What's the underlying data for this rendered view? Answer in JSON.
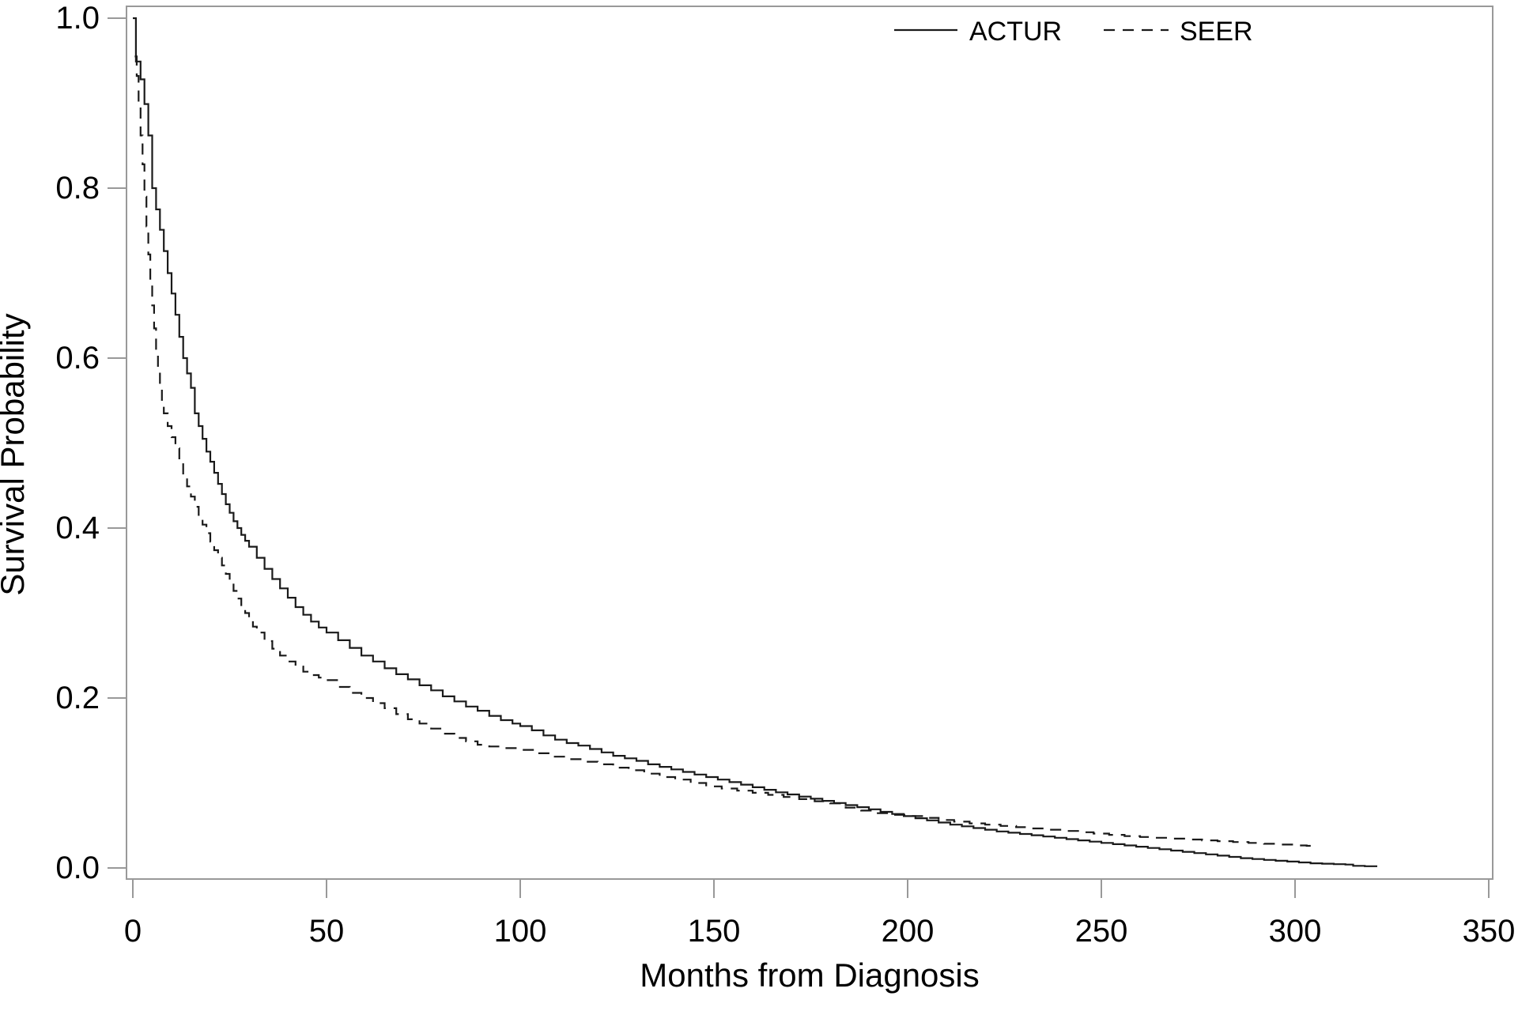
{
  "chart_data": {
    "type": "line",
    "subtype": "kaplan-meier-step",
    "title": "",
    "xlabel": "Months from Diagnosis",
    "ylabel": "Survival Probability",
    "xlim": [
      0,
      350
    ],
    "ylim": [
      0.0,
      1.0
    ],
    "grid": false,
    "legend_position": "top-right-inside",
    "x_ticks": [
      {
        "value": 0,
        "label": "0"
      },
      {
        "value": 50,
        "label": "50"
      },
      {
        "value": 100,
        "label": "100"
      },
      {
        "value": 150,
        "label": "150"
      },
      {
        "value": 200,
        "label": "200"
      },
      {
        "value": 250,
        "label": "250"
      },
      {
        "value": 300,
        "label": "300"
      },
      {
        "value": 350,
        "label": "350"
      }
    ],
    "y_ticks": [
      {
        "value": 0.0,
        "label": "0.0"
      },
      {
        "value": 0.2,
        "label": "0.2"
      },
      {
        "value": 0.4,
        "label": "0.4"
      },
      {
        "value": 0.6,
        "label": "0.6"
      },
      {
        "value": 0.8,
        "label": "0.8"
      },
      {
        "value": 1.0,
        "label": "1.0"
      }
    ],
    "colors": {
      "curve": "#1a1a1a",
      "axis_frame": "#999999",
      "tick": "#999999",
      "text": "#000000",
      "background": "#ffffff"
    },
    "series": [
      {
        "name": "ACTUR",
        "line_style": "solid",
        "points": [
          [
            0,
            1.0
          ],
          [
            0.8,
            0.949
          ],
          [
            2,
            0.928
          ],
          [
            3,
            0.899
          ],
          [
            4,
            0.862
          ],
          [
            5,
            0.8
          ],
          [
            6,
            0.775
          ],
          [
            7,
            0.751
          ],
          [
            8,
            0.726
          ],
          [
            9,
            0.7
          ],
          [
            10,
            0.676
          ],
          [
            11,
            0.651
          ],
          [
            12,
            0.625
          ],
          [
            13,
            0.6
          ],
          [
            14,
            0.582
          ],
          [
            15,
            0.565
          ],
          [
            16,
            0.535
          ],
          [
            17,
            0.52
          ],
          [
            18,
            0.505
          ],
          [
            19,
            0.49
          ],
          [
            20,
            0.478
          ],
          [
            21,
            0.465
          ],
          [
            22,
            0.452
          ],
          [
            23,
            0.44
          ],
          [
            24,
            0.428
          ],
          [
            25,
            0.418
          ],
          [
            26,
            0.408
          ],
          [
            27,
            0.4
          ],
          [
            28,
            0.392
          ],
          [
            29,
            0.385
          ],
          [
            30,
            0.378
          ],
          [
            32,
            0.365
          ],
          [
            34,
            0.352
          ],
          [
            36,
            0.34
          ],
          [
            38,
            0.329
          ],
          [
            40,
            0.318
          ],
          [
            42,
            0.307
          ],
          [
            44,
            0.298
          ],
          [
            46,
            0.29
          ],
          [
            48,
            0.283
          ],
          [
            50,
            0.277
          ],
          [
            53,
            0.268
          ],
          [
            56,
            0.259
          ],
          [
            59,
            0.25
          ],
          [
            62,
            0.243
          ],
          [
            65,
            0.235
          ],
          [
            68,
            0.228
          ],
          [
            71,
            0.222
          ],
          [
            74,
            0.215
          ],
          [
            77,
            0.209
          ],
          [
            80,
            0.202
          ],
          [
            83,
            0.196
          ],
          [
            86,
            0.19
          ],
          [
            89,
            0.185
          ],
          [
            92,
            0.179
          ],
          [
            95,
            0.174
          ],
          [
            98,
            0.17
          ],
          [
            100,
            0.167
          ],
          [
            103,
            0.162
          ],
          [
            106,
            0.156
          ],
          [
            109,
            0.151
          ],
          [
            112,
            0.147
          ],
          [
            115,
            0.144
          ],
          [
            118,
            0.14
          ],
          [
            121,
            0.136
          ],
          [
            124,
            0.132
          ],
          [
            127,
            0.129
          ],
          [
            130,
            0.126
          ],
          [
            133,
            0.122
          ],
          [
            136,
            0.119
          ],
          [
            139,
            0.116
          ],
          [
            142,
            0.113
          ],
          [
            145,
            0.11
          ],
          [
            148,
            0.107
          ],
          [
            151,
            0.104
          ],
          [
            154,
            0.101
          ],
          [
            157,
            0.098
          ],
          [
            160,
            0.095
          ],
          [
            163,
            0.092
          ],
          [
            166,
            0.089
          ],
          [
            169,
            0.0865
          ],
          [
            172,
            0.084
          ],
          [
            175,
            0.0815
          ],
          [
            178,
            0.079
          ],
          [
            181,
            0.0765
          ],
          [
            184,
            0.074
          ],
          [
            187,
            0.0715
          ],
          [
            190,
            0.069
          ],
          [
            193,
            0.066
          ],
          [
            196,
            0.0635
          ],
          [
            199,
            0.061
          ],
          [
            202,
            0.0585
          ],
          [
            205,
            0.056
          ],
          [
            208,
            0.0535
          ],
          [
            211,
            0.051
          ],
          [
            214,
            0.049
          ],
          [
            217,
            0.047
          ],
          [
            220,
            0.045
          ],
          [
            223,
            0.043
          ],
          [
            226,
            0.0415
          ],
          [
            229,
            0.04
          ],
          [
            232,
            0.0385
          ],
          [
            235,
            0.037
          ],
          [
            238,
            0.0355
          ],
          [
            241,
            0.034
          ],
          [
            244,
            0.0325
          ],
          [
            247,
            0.031
          ],
          [
            250,
            0.0295
          ],
          [
            253,
            0.028
          ],
          [
            256,
            0.0265
          ],
          [
            259,
            0.025
          ],
          [
            262,
            0.0235
          ],
          [
            265,
            0.022
          ],
          [
            268,
            0.0205
          ],
          [
            271,
            0.019
          ],
          [
            274,
            0.0175
          ],
          [
            277,
            0.016
          ],
          [
            280,
            0.0145
          ],
          [
            283,
            0.013
          ],
          [
            286,
            0.0115
          ],
          [
            289,
            0.0105
          ],
          [
            292,
            0.0095
          ],
          [
            295,
            0.0085
          ],
          [
            298,
            0.0075
          ],
          [
            301,
            0.0065
          ],
          [
            304,
            0.0055
          ],
          [
            307,
            0.005
          ],
          [
            310,
            0.0045
          ],
          [
            313,
            0.004
          ],
          [
            315,
            0.0025
          ],
          [
            318,
            0.002
          ],
          [
            321,
            0.001
          ]
        ]
      },
      {
        "name": "SEER",
        "line_style": "dashed",
        "points": [
          [
            0.5,
            0.955
          ],
          [
            1,
            0.932
          ],
          [
            1.5,
            0.9
          ],
          [
            2,
            0.862
          ],
          [
            2.5,
            0.828
          ],
          [
            3,
            0.79
          ],
          [
            3.5,
            0.755
          ],
          [
            4,
            0.722
          ],
          [
            4.5,
            0.692
          ],
          [
            5,
            0.662
          ],
          [
            5.5,
            0.635
          ],
          [
            6,
            0.608
          ],
          [
            6.5,
            0.585
          ],
          [
            7,
            0.563
          ],
          [
            7.5,
            0.545
          ],
          [
            8,
            0.535
          ],
          [
            9,
            0.52
          ],
          [
            10,
            0.507
          ],
          [
            11,
            0.494
          ],
          [
            12,
            0.478
          ],
          [
            13,
            0.463
          ],
          [
            14,
            0.449
          ],
          [
            15,
            0.437
          ],
          [
            16,
            0.425
          ],
          [
            17,
            0.414
          ],
          [
            18,
            0.404
          ],
          [
            19,
            0.394
          ],
          [
            20,
            0.384
          ],
          [
            21,
            0.374
          ],
          [
            22,
            0.365
          ],
          [
            23,
            0.356
          ],
          [
            24,
            0.346
          ],
          [
            25,
            0.336
          ],
          [
            26,
            0.326
          ],
          [
            27,
            0.317
          ],
          [
            28,
            0.308
          ],
          [
            29,
            0.3
          ],
          [
            30,
            0.292
          ],
          [
            31,
            0.284
          ],
          [
            32,
            0.277
          ],
          [
            34,
            0.267
          ],
          [
            36,
            0.258
          ],
          [
            38,
            0.25
          ],
          [
            40,
            0.243
          ],
          [
            42,
            0.237
          ],
          [
            44,
            0.231
          ],
          [
            46,
            0.227
          ],
          [
            48,
            0.224
          ],
          [
            50,
            0.221
          ],
          [
            53,
            0.213
          ],
          [
            56,
            0.206
          ],
          [
            59,
            0.2
          ],
          [
            62,
            0.194
          ],
          [
            65,
            0.188
          ],
          [
            68,
            0.181
          ],
          [
            71,
            0.175
          ],
          [
            74,
            0.17
          ],
          [
            77,
            0.164
          ],
          [
            80,
            0.158
          ],
          [
            83,
            0.153
          ],
          [
            86,
            0.149
          ],
          [
            89,
            0.145
          ],
          [
            92,
            0.143
          ],
          [
            95,
            0.141
          ],
          [
            100,
            0.139
          ],
          [
            104,
            0.135
          ],
          [
            108,
            0.131
          ],
          [
            112,
            0.128
          ],
          [
            116,
            0.125
          ],
          [
            120,
            0.122
          ],
          [
            124,
            0.118
          ],
          [
            128,
            0.115
          ],
          [
            132,
            0.111
          ],
          [
            136,
            0.107
          ],
          [
            140,
            0.104
          ],
          [
            144,
            0.1
          ],
          [
            148,
            0.096
          ],
          [
            152,
            0.0935
          ],
          [
            156,
            0.091
          ],
          [
            160,
            0.0885
          ],
          [
            164,
            0.086
          ],
          [
            168,
            0.0835
          ],
          [
            172,
            0.081
          ],
          [
            176,
            0.0785
          ],
          [
            180,
            0.076
          ],
          [
            184,
            0.071
          ],
          [
            188,
            0.0675
          ],
          [
            192,
            0.0645
          ],
          [
            196,
            0.0625
          ],
          [
            200,
            0.061
          ],
          [
            204,
            0.059
          ],
          [
            208,
            0.0565
          ],
          [
            212,
            0.0545
          ],
          [
            216,
            0.0525
          ],
          [
            220,
            0.051
          ],
          [
            224,
            0.0495
          ],
          [
            228,
            0.048
          ],
          [
            232,
            0.0465
          ],
          [
            236,
            0.045
          ],
          [
            240,
            0.0435
          ],
          [
            244,
            0.042
          ],
          [
            248,
            0.0405
          ],
          [
            252,
            0.039
          ],
          [
            256,
            0.0375
          ],
          [
            260,
            0.0365
          ],
          [
            264,
            0.0355
          ],
          [
            268,
            0.0345
          ],
          [
            272,
            0.0335
          ],
          [
            276,
            0.0325
          ],
          [
            280,
            0.0315
          ],
          [
            284,
            0.0305
          ],
          [
            288,
            0.0295
          ],
          [
            292,
            0.0285
          ],
          [
            296,
            0.0275
          ],
          [
            300,
            0.0265
          ],
          [
            303,
            0.026
          ],
          [
            305,
            0.026
          ]
        ]
      }
    ]
  }
}
